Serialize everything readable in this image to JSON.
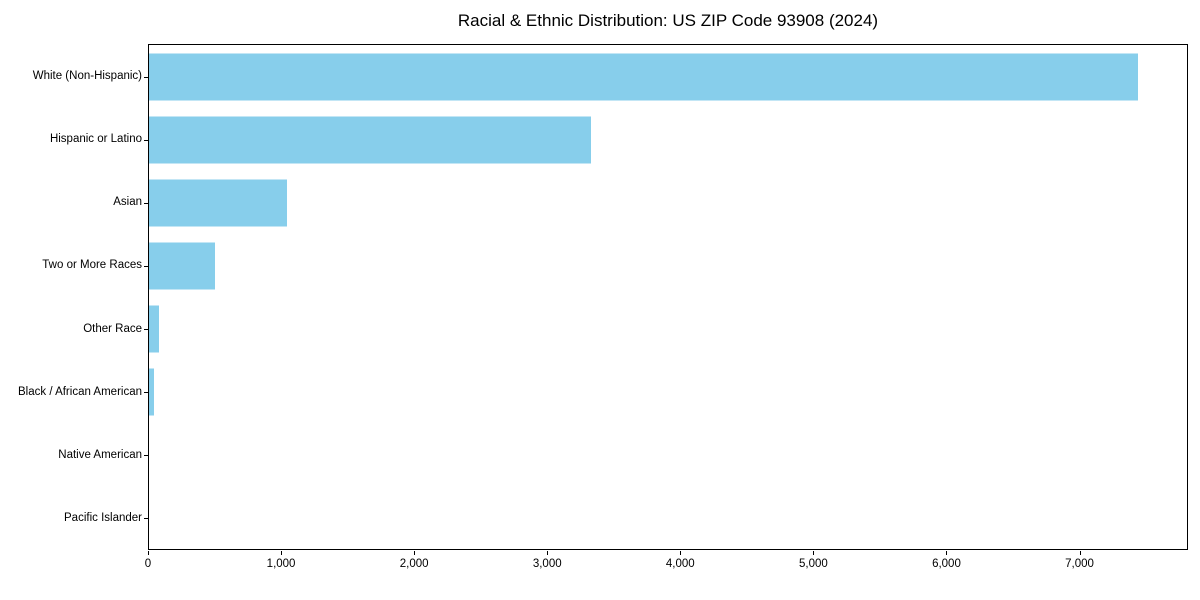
{
  "chart_data": {
    "type": "bar",
    "orientation": "horizontal",
    "title": "Racial & Ethnic Distribution: US ZIP Code 93908 (2024)",
    "categories": [
      "White (Non-Hispanic)",
      "Hispanic or Latino",
      "Asian",
      "Two or More Races",
      "Other Race",
      "Black / African American",
      "Native American",
      "Pacific Islander"
    ],
    "values": [
      7443,
      3330,
      1040,
      500,
      75,
      40,
      0,
      0
    ],
    "xlabel": "",
    "ylabel": "",
    "xlim": [
      0,
      7815
    ],
    "x_ticks": [
      {
        "value": 0,
        "label": "0"
      },
      {
        "value": 1000,
        "label": "1,000"
      },
      {
        "value": 2000,
        "label": "2,000"
      },
      {
        "value": 3000,
        "label": "3,000"
      },
      {
        "value": 4000,
        "label": "4,000"
      },
      {
        "value": 5000,
        "label": "5,000"
      },
      {
        "value": 6000,
        "label": "6,000"
      },
      {
        "value": 7000,
        "label": "7,000"
      }
    ],
    "bar_color": "#87CEEB",
    "spine_color": "#000000",
    "grid": false,
    "legend": null
  }
}
